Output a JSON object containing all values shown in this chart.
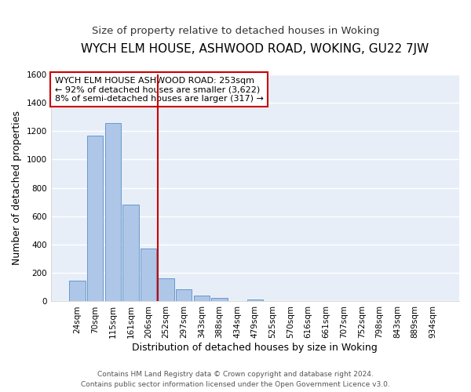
{
  "title": "WYCH ELM HOUSE, ASHWOOD ROAD, WOKING, GU22 7JW",
  "subtitle": "Size of property relative to detached houses in Woking",
  "xlabel": "Distribution of detached houses by size in Woking",
  "ylabel": "Number of detached properties",
  "bin_labels": [
    "24sqm",
    "70sqm",
    "115sqm",
    "161sqm",
    "206sqm",
    "252sqm",
    "297sqm",
    "343sqm",
    "388sqm",
    "434sqm",
    "479sqm",
    "525sqm",
    "570sqm",
    "616sqm",
    "661sqm",
    "707sqm",
    "752sqm",
    "798sqm",
    "843sqm",
    "889sqm",
    "934sqm"
  ],
  "bar_heights": [
    145,
    1170,
    1255,
    680,
    375,
    165,
    85,
    40,
    22,
    0,
    15,
    0,
    0,
    0,
    0,
    0,
    0,
    0,
    0,
    0,
    0
  ],
  "bar_color": "#aec6e8",
  "bar_edge_color": "#6699cc",
  "plot_bg_color": "#e8eef8",
  "fig_bg_color": "#ffffff",
  "grid_color": "#ffffff",
  "marker_line_color": "#cc0000",
  "annotation_lines": [
    "WYCH ELM HOUSE ASHWOOD ROAD: 253sqm",
    "← 92% of detached houses are smaller (3,622)",
    "8% of semi-detached houses are larger (317) →"
  ],
  "ylim": [
    0,
    1600
  ],
  "yticks": [
    0,
    200,
    400,
    600,
    800,
    1000,
    1200,
    1400,
    1600
  ],
  "footer_lines": [
    "Contains HM Land Registry data © Crown copyright and database right 2024.",
    "Contains public sector information licensed under the Open Government Licence v3.0."
  ],
  "title_fontsize": 11,
  "subtitle_fontsize": 9.5,
  "axis_label_fontsize": 9,
  "tick_fontsize": 7.5,
  "annotation_fontsize": 8,
  "footer_fontsize": 6.5,
  "marker_bin_index": 5
}
